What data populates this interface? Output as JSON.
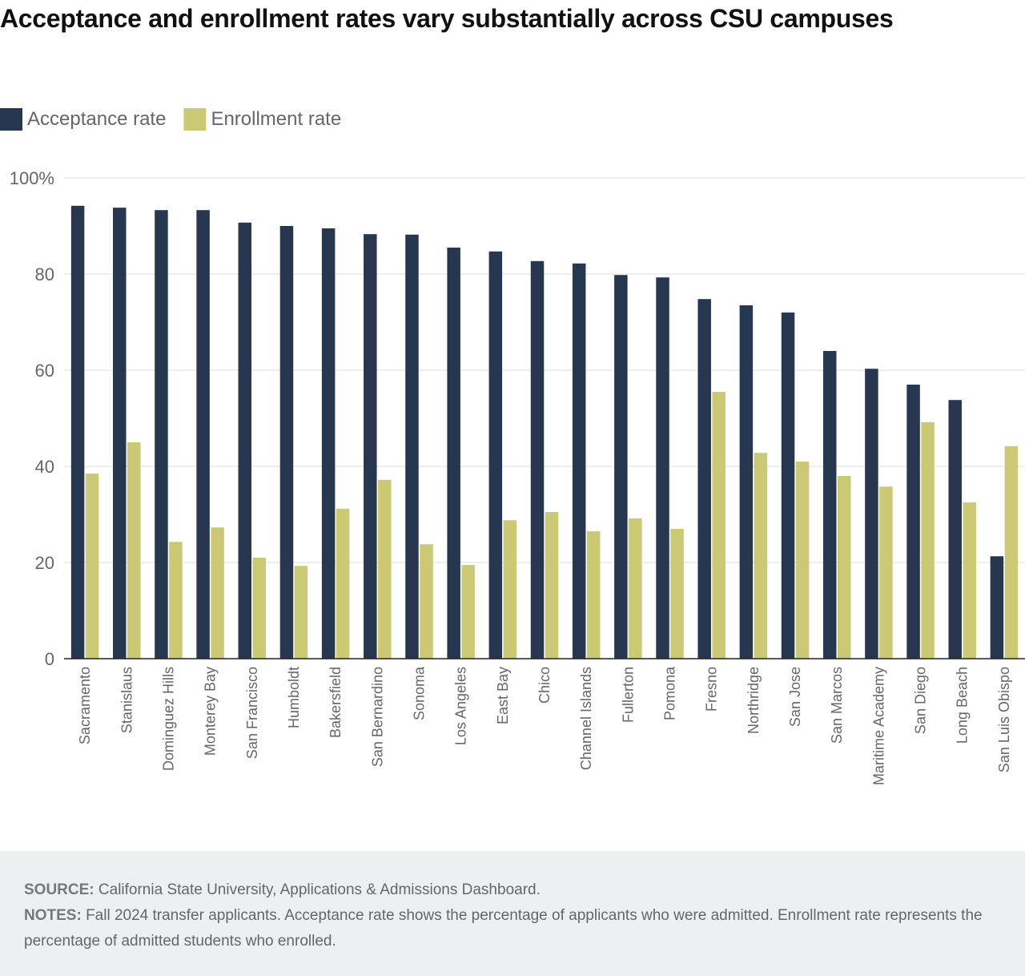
{
  "chart_data": {
    "type": "bar",
    "title": "Acceptance and enrollment rates vary substantially across CSU campuses",
    "categories": [
      "Sacramento",
      "Stanislaus",
      "Dominguez Hills",
      "Monterey Bay",
      "San Francisco",
      "Humboldt",
      "Bakersfield",
      "San Bernardino",
      "Sonoma",
      "Los Angeles",
      "East Bay",
      "Chico",
      "Channel Islands",
      "Fullerton",
      "Pomona",
      "Fresno",
      "Northridge",
      "San Jose",
      "San Marcos",
      "Maritime Academy",
      "San Diego",
      "Long Beach",
      "San Luis Obispo"
    ],
    "series": [
      {
        "name": "Acceptance rate",
        "color": "#283750",
        "values": [
          94.2,
          93.8,
          93.3,
          93.3,
          90.7,
          90.0,
          89.5,
          88.3,
          88.2,
          85.5,
          84.7,
          82.7,
          82.2,
          79.8,
          79.3,
          74.8,
          73.5,
          72.0,
          64.0,
          60.3,
          57.0,
          53.8,
          21.3
        ]
      },
      {
        "name": "Enrollment rate",
        "color": "#cbc974",
        "values": [
          38.5,
          45.0,
          24.3,
          27.3,
          21.0,
          19.3,
          31.2,
          37.2,
          23.8,
          19.5,
          28.8,
          30.5,
          26.5,
          29.2,
          27.0,
          55.5,
          42.8,
          41.0,
          38.0,
          35.8,
          49.2,
          32.5,
          44.2
        ]
      }
    ],
    "ylim": [
      0,
      100
    ],
    "yticks": [
      0,
      20,
      40,
      60,
      80,
      {
        "value": 100,
        "label": "100%"
      }
    ],
    "grid": true,
    "source": {
      "label": "SOURCE:",
      "text": "California State University, Applications & Admissions Dashboard."
    },
    "notes": {
      "label": "NOTES:",
      "text": "Fall 2024 transfer applicants. Acceptance rate shows the percentage of applicants who were admitted. Enrollment rate represents the percentage of admitted students who enrolled."
    }
  }
}
